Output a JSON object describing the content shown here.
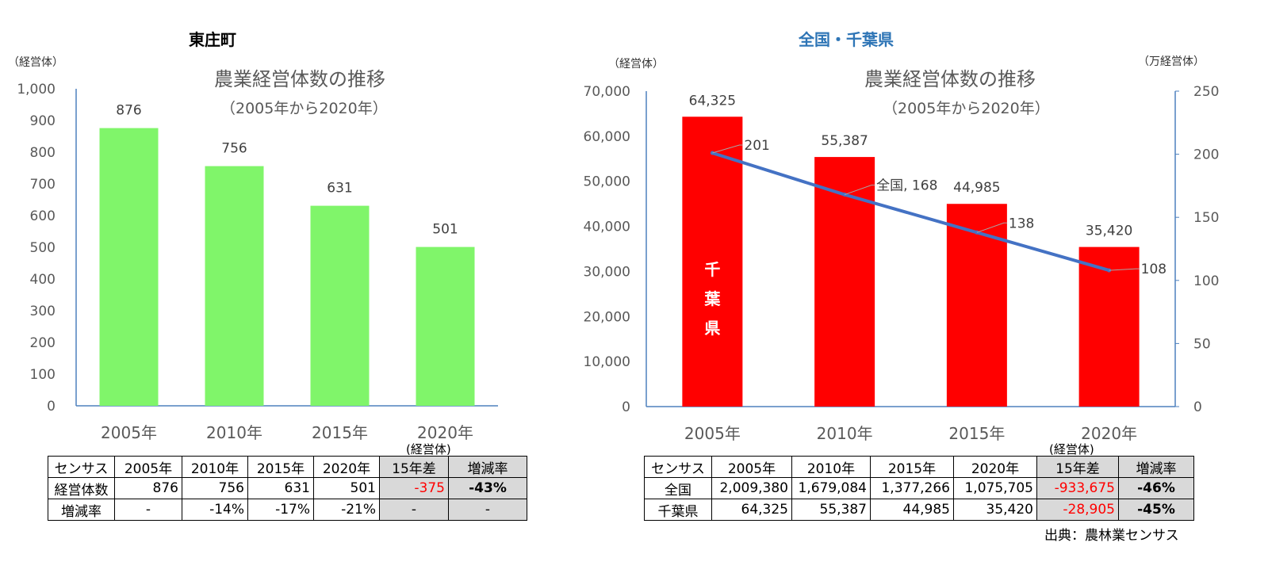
{
  "left": {
    "heading": "東庄町",
    "y_unit": "（経営体）",
    "title": "農業経営体数の推移",
    "subtitle": "（2005年から2020年）",
    "table_unit": "(経営体)",
    "table": {
      "headers": [
        "センサス",
        "2005年",
        "2010年",
        "2015年",
        "2020年",
        "15年差",
        "増減率"
      ],
      "rows": [
        [
          "経営体数",
          "876",
          "756",
          "631",
          "501",
          "-375",
          "-43%"
        ],
        [
          "増減率",
          "-",
          "-14%",
          "-17%",
          "-21%",
          "-",
          "-"
        ]
      ]
    }
  },
  "right": {
    "heading": "全国・千葉県",
    "y_unit_left": "（経営体）",
    "y_unit_right": "（万経営体）",
    "title": "農業経営体数の推移",
    "subtitle": "（2005年から2020年）",
    "bar_label": "千葉県",
    "table_unit": "(経営体)",
    "table": {
      "headers": [
        "センサス",
        "2005年",
        "2010年",
        "2015年",
        "2020年",
        "15年差",
        "増減率"
      ],
      "rows": [
        [
          "全国",
          "2,009,380",
          "1,679,084",
          "1,377,266",
          "1,075,705",
          "-933,675",
          "-46%"
        ],
        [
          "千葉県",
          "64,325",
          "55,387",
          "44,985",
          "35,420",
          "-28,905",
          "-45%"
        ]
      ]
    },
    "source": "出典：農林業センサス"
  },
  "colors": {
    "green_bar": "#80f56a",
    "red_bar": "#ff0000",
    "line": "#4472c4",
    "axis": "#4f81bd",
    "heading_blue": "#2e75b6",
    "negative": "#ff0000"
  },
  "chart_data": [
    {
      "type": "bar",
      "title": "農業経営体数の推移",
      "subtitle": "（2005年から2020年）",
      "categories": [
        "2005年",
        "2010年",
        "2015年",
        "2020年"
      ],
      "values": [
        876,
        756,
        631,
        501
      ],
      "value_labels": [
        "876",
        "756",
        "631",
        "501"
      ],
      "ylabel": "（経営体）",
      "ylim": [
        0,
        1000
      ],
      "yticks": [
        "0",
        "100",
        "200",
        "300",
        "400",
        "500",
        "600",
        "700",
        "800",
        "900",
        "1,000"
      ],
      "grid": false,
      "legend": "none"
    },
    {
      "type": "bar",
      "title": "農業経営体数の推移",
      "subtitle": "（2005年から2020年）",
      "categories": [
        "2005年",
        "2010年",
        "2015年",
        "2020年"
      ],
      "series": [
        {
          "name": "千葉県",
          "type": "bar",
          "axis": "left",
          "values": [
            64325,
            55387,
            44985,
            35420
          ],
          "value_labels": [
            "64,325",
            "55,387",
            "44,985",
            "35,420"
          ]
        },
        {
          "name": "全国",
          "type": "line",
          "axis": "right",
          "values": [
            201,
            168,
            138,
            108
          ],
          "value_labels": [
            "201",
            "全国, 168",
            "138",
            "108"
          ]
        }
      ],
      "ylabel": "（経営体）",
      "ylabel_right": "（万経営体）",
      "ylim": [
        0,
        70000
      ],
      "ylim_right": [
        0,
        250
      ],
      "yticks": [
        "0",
        "10,000",
        "20,000",
        "30,000",
        "40,000",
        "50,000",
        "60,000",
        "70,000"
      ],
      "yticks_right": [
        "0",
        "50",
        "100",
        "150",
        "200",
        "250"
      ],
      "grid": false,
      "legend": "none"
    }
  ]
}
